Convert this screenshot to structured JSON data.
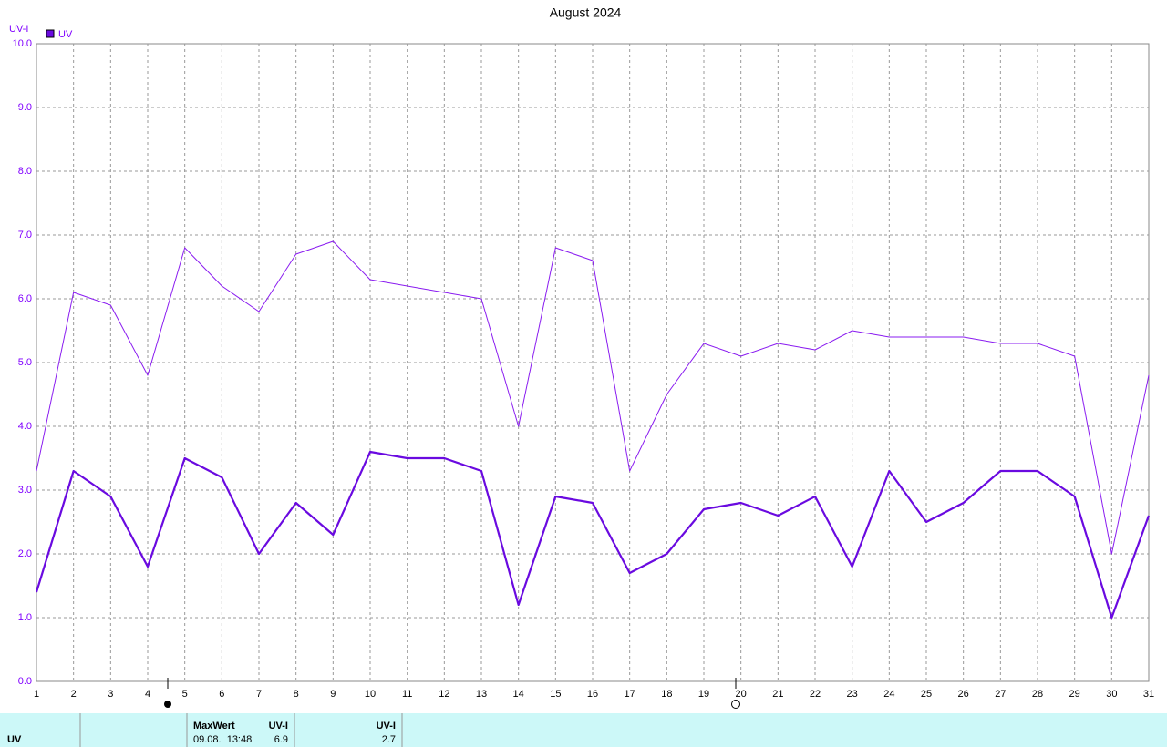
{
  "chart_data": {
    "type": "line",
    "title": "August 2024",
    "ylabel": "UV-I",
    "categories": [
      "1",
      "2",
      "3",
      "4",
      "5",
      "6",
      "7",
      "8",
      "9",
      "10",
      "11",
      "12",
      "13",
      "14",
      "15",
      "16",
      "17",
      "18",
      "19",
      "20",
      "21",
      "22",
      "23",
      "24",
      "25",
      "26",
      "27",
      "28",
      "29",
      "30",
      "31"
    ],
    "series": [
      {
        "name": "UV",
        "color": "#6a0ae0",
        "width": 2.2,
        "values": [
          1.4,
          3.3,
          2.9,
          1.8,
          3.5,
          3.2,
          2.0,
          2.8,
          2.3,
          3.6,
          3.5,
          3.5,
          3.3,
          1.2,
          2.9,
          2.8,
          1.7,
          2.0,
          2.7,
          2.8,
          2.6,
          2.9,
          1.8,
          3.3,
          2.5,
          2.8,
          3.3,
          3.3,
          2.9,
          1.0,
          2.6
        ]
      },
      {
        "color": "#8a1cf0",
        "width": 1,
        "values": [
          3.3,
          6.1,
          5.9,
          4.8,
          6.8,
          6.2,
          5.8,
          6.7,
          6.9,
          6.3,
          6.2,
          6.1,
          6.0,
          4.0,
          6.8,
          6.6,
          3.3,
          4.5,
          5.3,
          5.1,
          5.3,
          5.2,
          5.5,
          5.4,
          5.4,
          5.4,
          5.3,
          5.3,
          5.1,
          2.0,
          4.8
        ]
      }
    ],
    "ylim": [
      0,
      10
    ],
    "yticks": [
      {
        "value": 0,
        "label": "0.0"
      },
      {
        "value": 1,
        "label": "1.0"
      },
      {
        "value": 2,
        "label": "2.0"
      },
      {
        "value": 3,
        "label": "3.0"
      },
      {
        "value": 4,
        "label": "4.0"
      },
      {
        "value": 5,
        "label": "5.0"
      },
      {
        "value": 6,
        "label": "6.0"
      },
      {
        "value": 7,
        "label": "7.0"
      },
      {
        "value": 8,
        "label": "8.0"
      },
      {
        "value": 9,
        "label": "9.0"
      },
      {
        "value": 10,
        "label": "10.0"
      }
    ],
    "grid": true
  },
  "summary": {
    "row_label": "UV",
    "max_header": "MaxWert",
    "max_time": "09.08.  13:48",
    "max_unit": "UV-I",
    "max_value": 6.9,
    "avg_unit": "UV-I",
    "avg_value": 2.7
  }
}
